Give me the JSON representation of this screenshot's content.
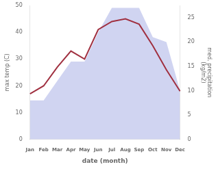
{
  "chart_data": {
    "type": "line",
    "categories": [
      "Jan",
      "Feb",
      "Mar",
      "Apr",
      "May",
      "Jun",
      "Jul",
      "Aug",
      "Sep",
      "Oct",
      "Nov",
      "Dec"
    ],
    "series": [
      {
        "type": "area",
        "axis": "y2",
        "color": "#b0b8e8",
        "values": [
          8,
          8,
          12,
          16,
          16,
          22,
          27,
          27,
          27,
          21,
          20,
          10
        ]
      },
      {
        "type": "line",
        "color": "#a03040",
        "values": [
          17,
          20,
          27,
          33,
          30,
          41,
          44,
          45,
          43,
          35,
          26,
          18
        ]
      }
    ],
    "xlabel": "date (month)",
    "ylabel": "max temp (C)",
    "y2label": "med. precipitation\n(kg/m2)",
    "ylim": [
      0,
      50
    ],
    "yticks": [
      0,
      10,
      20,
      30,
      40,
      50
    ],
    "y2lim": [
      0,
      27.5
    ],
    "y2ticks": [
      0,
      5,
      10,
      15,
      20,
      25
    ],
    "grid": false
  }
}
